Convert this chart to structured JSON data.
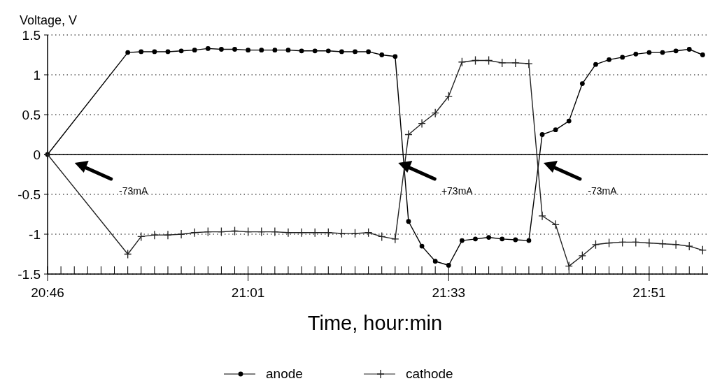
{
  "chart_data": {
    "type": "line",
    "ylabel": "Voltage, V",
    "xlabel": "Time, hour:min",
    "categories": [
      "20:46",
      null,
      null,
      null,
      null,
      null,
      null,
      null,
      null,
      null,
      null,
      null,
      null,
      null,
      null,
      "21:01",
      null,
      null,
      null,
      null,
      null,
      null,
      null,
      null,
      null,
      null,
      null,
      null,
      null,
      null,
      "21:33",
      null,
      null,
      null,
      null,
      null,
      null,
      null,
      null,
      null,
      null,
      null,
      null,
      null,
      null,
      "21:51",
      null,
      null,
      null,
      null
    ],
    "ylim": [
      -1.5,
      1.5
    ],
    "yticks": [
      -1.5,
      -1,
      -0.5,
      0,
      0.5,
      1,
      1.5
    ],
    "grid": "y",
    "legend": "bottom",
    "line_style": "solid",
    "ref_lines": [
      {
        "axis": "y",
        "value": 0,
        "color": "#000000",
        "line_style": "solid"
      }
    ],
    "series": [
      {
        "name": "anode",
        "color": "#000000",
        "marker": "circle",
        "values": [
          0,
          null,
          null,
          null,
          null,
          null,
          1.28,
          1.29,
          1.29,
          1.29,
          1.3,
          1.31,
          1.33,
          1.32,
          1.32,
          1.31,
          1.31,
          1.31,
          1.31,
          1.3,
          1.3,
          1.3,
          1.29,
          1.29,
          1.29,
          1.25,
          1.23,
          -0.84,
          -1.15,
          -1.34,
          -1.39,
          -1.08,
          -1.06,
          -1.04,
          -1.06,
          -1.07,
          -1.08,
          0.25,
          0.31,
          0.42,
          0.89,
          1.13,
          1.19,
          1.22,
          1.26,
          1.28,
          1.28,
          1.3,
          1.32,
          1.25
        ]
      },
      {
        "name": "cathode",
        "color": "#222222",
        "marker": "cross",
        "values": [
          0,
          null,
          null,
          null,
          null,
          null,
          -1.25,
          -1.03,
          -1.01,
          -1.01,
          -1,
          -0.98,
          -0.97,
          -0.97,
          -0.96,
          -0.97,
          -0.97,
          -0.97,
          -0.98,
          -0.98,
          -0.98,
          -0.98,
          -0.99,
          -0.99,
          -0.98,
          -1.03,
          -1.06,
          0.25,
          0.39,
          0.52,
          0.73,
          1.16,
          1.18,
          1.18,
          1.15,
          1.15,
          1.14,
          -0.77,
          -0.88,
          -1.4,
          -1.27,
          -1.13,
          -1.11,
          -1.1,
          -1.1,
          -1.11,
          -1.12,
          -1.13,
          -1.15,
          -1.2
        ]
      }
    ],
    "annotations": [
      "-73mA",
      "+73mA",
      "-73mA"
    ]
  }
}
